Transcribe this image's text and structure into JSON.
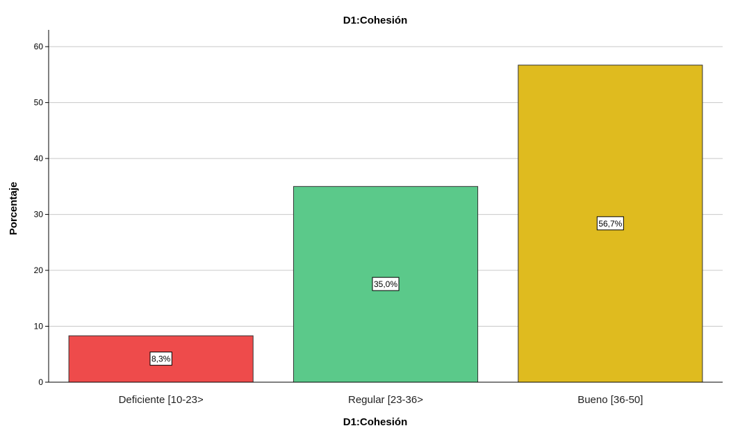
{
  "chart_data": {
    "type": "bar",
    "title": "D1:Cohesión",
    "xlabel": "D1:Cohesión",
    "ylabel": "Porcentaje",
    "categories": [
      "Deficiente [10-23>",
      "Regular [23-36>",
      "Bueno [36-50]"
    ],
    "values": [
      8.3,
      35.0,
      56.7
    ],
    "data_labels": [
      "8,3%",
      "35,0%",
      "56,7%"
    ],
    "colors": [
      "#ee4b4b",
      "#5bc98a",
      "#dfbb1f"
    ],
    "yticks": [
      0,
      10,
      20,
      30,
      40,
      50,
      60
    ],
    "ytick_labels": [
      "0",
      "10",
      "20",
      "30",
      "40",
      "50",
      "60"
    ],
    "ylim": [
      0,
      63
    ],
    "grid": true,
    "legend": "none"
  }
}
